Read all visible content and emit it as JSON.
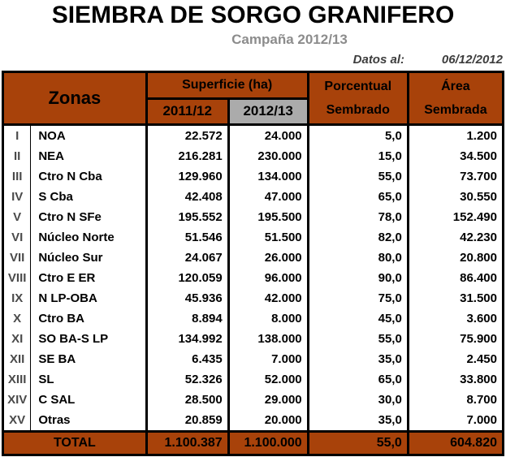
{
  "page": {
    "title": "SIEMBRA DE SORGO GRANIFERO",
    "subtitle": "Campaña 2012/13",
    "datos_label": "Datos al:",
    "datos_value": "06/12/2012"
  },
  "colors": {
    "accent": "#A8420A",
    "header_gray": "#ABABAB",
    "subtitle_gray": "#8C8C8C"
  },
  "table": {
    "headers": {
      "zonas": "Zonas",
      "superficie": "Superficie (ha)",
      "year1": "2011/12",
      "year2": "2012/13",
      "porcentual_line1": "Porcentual",
      "porcentual_line2": "Sembrado",
      "area_line1": "Área",
      "area_line2": "Sembrada"
    },
    "rows": [
      {
        "n": "I",
        "zone": "NOA",
        "s1": "22.572",
        "s2": "24.000",
        "pct": "5,0",
        "area": "1.200"
      },
      {
        "n": "II",
        "zone": "NEA",
        "s1": "216.281",
        "s2": "230.000",
        "pct": "15,0",
        "area": "34.500"
      },
      {
        "n": "III",
        "zone": "Ctro N Cba",
        "s1": "129.960",
        "s2": "134.000",
        "pct": "55,0",
        "area": "73.700"
      },
      {
        "n": "IV",
        "zone": "S Cba",
        "s1": "42.408",
        "s2": "47.000",
        "pct": "65,0",
        "area": "30.550"
      },
      {
        "n": "V",
        "zone": "Ctro N SFe",
        "s1": "195.552",
        "s2": "195.500",
        "pct": "78,0",
        "area": "152.490"
      },
      {
        "n": "VI",
        "zone": "Núcleo Norte",
        "s1": "51.546",
        "s2": "51.500",
        "pct": "82,0",
        "area": "42.230"
      },
      {
        "n": "VII",
        "zone": "Núcleo Sur",
        "s1": "24.067",
        "s2": "26.000",
        "pct": "80,0",
        "area": "20.800"
      },
      {
        "n": "VIII",
        "zone": "Ctro E ER",
        "s1": "120.059",
        "s2": "96.000",
        "pct": "90,0",
        "area": "86.400"
      },
      {
        "n": "IX",
        "zone": "N LP-OBA",
        "s1": "45.936",
        "s2": "42.000",
        "pct": "75,0",
        "area": "31.500"
      },
      {
        "n": "X",
        "zone": "Ctro BA",
        "s1": "8.894",
        "s2": "8.000",
        "pct": "45,0",
        "area": "3.600"
      },
      {
        "n": "XI",
        "zone": "SO BA-S LP",
        "s1": "134.992",
        "s2": "138.000",
        "pct": "55,0",
        "area": "75.900"
      },
      {
        "n": "XII",
        "zone": "SE BA",
        "s1": "6.435",
        "s2": "7.000",
        "pct": "35,0",
        "area": "2.450"
      },
      {
        "n": "XIII",
        "zone": "SL",
        "s1": "52.326",
        "s2": "52.000",
        "pct": "65,0",
        "area": "33.800"
      },
      {
        "n": "XIV",
        "zone": "C SAL",
        "s1": "28.500",
        "s2": "29.000",
        "pct": "30,0",
        "area": "8.700"
      },
      {
        "n": "XV",
        "zone": "Otras",
        "s1": "20.859",
        "s2": "20.000",
        "pct": "35,0",
        "area": "7.000"
      }
    ],
    "total": {
      "label": "TOTAL",
      "s1": "1.100.387",
      "s2": "1.100.000",
      "pct": "55,0",
      "area": "604.820"
    }
  },
  "chart_data": {
    "type": "table",
    "title": "SIEMBRA DE SORGO GRANIFERO",
    "subtitle": "Campaña 2012/13",
    "as_of_date": "06/12/2012",
    "columns": [
      "Zona (número)",
      "Zona",
      "Superficie 2011/12 (ha)",
      "Superficie 2012/13 (ha)",
      "Porcentual Sembrado (%)",
      "Área Sembrada (ha)"
    ],
    "rows": [
      [
        "I",
        "NOA",
        22572,
        24000,
        5.0,
        1200
      ],
      [
        "II",
        "NEA",
        216281,
        230000,
        15.0,
        34500
      ],
      [
        "III",
        "Ctro N Cba",
        129960,
        134000,
        55.0,
        73700
      ],
      [
        "IV",
        "S Cba",
        42408,
        47000,
        65.0,
        30550
      ],
      [
        "V",
        "Ctro N SFe",
        195552,
        195500,
        78.0,
        152490
      ],
      [
        "VI",
        "Núcleo Norte",
        51546,
        51500,
        82.0,
        42230
      ],
      [
        "VII",
        "Núcleo Sur",
        24067,
        26000,
        80.0,
        20800
      ],
      [
        "VIII",
        "Ctro E ER",
        120059,
        96000,
        90.0,
        86400
      ],
      [
        "IX",
        "N LP-OBA",
        45936,
        42000,
        75.0,
        31500
      ],
      [
        "X",
        "Ctro BA",
        8894,
        8000,
        45.0,
        3600
      ],
      [
        "XI",
        "SO BA-S LP",
        134992,
        138000,
        55.0,
        75900
      ],
      [
        "XII",
        "SE BA",
        6435,
        7000,
        35.0,
        2450
      ],
      [
        "XIII",
        "SL",
        52326,
        52000,
        65.0,
        33800
      ],
      [
        "XIV",
        "C SAL",
        28500,
        29000,
        30.0,
        8700
      ],
      [
        "XV",
        "Otras",
        20859,
        20000,
        35.0,
        7000
      ]
    ],
    "total_row": [
      "",
      "TOTAL",
      1100387,
      1100000,
      55.0,
      604820
    ]
  }
}
